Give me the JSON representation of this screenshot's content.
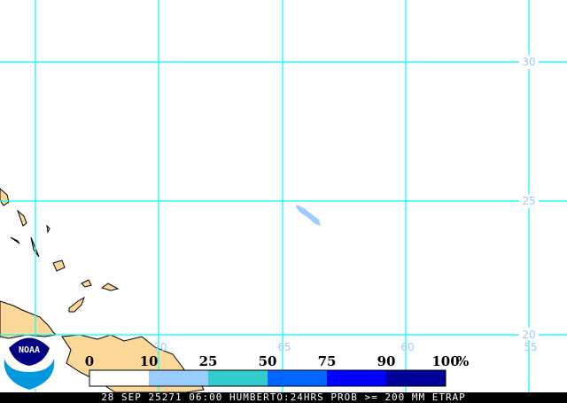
{
  "map": {
    "grid_color": "#00ffff",
    "land_color": "#fcd898",
    "label_color": "#99ccff",
    "latitude_labels": [
      "30",
      "25",
      "20"
    ],
    "longitude_labels": [
      "70",
      "65",
      "60",
      "55"
    ]
  },
  "legend": {
    "ticks": [
      "0",
      "10",
      "25",
      "50",
      "75",
      "90",
      "100"
    ],
    "unit": "%",
    "colors": [
      "#ffffff",
      "#99ccff",
      "#33cccc",
      "#0066ff",
      "#0000ff",
      "#000099"
    ]
  },
  "logo": {
    "text": "NOAA"
  },
  "footer": {
    "text": "28 SEP 25271 06:00 HUMBERTO:24HRS PROB >= 200 MM ETRAP"
  }
}
